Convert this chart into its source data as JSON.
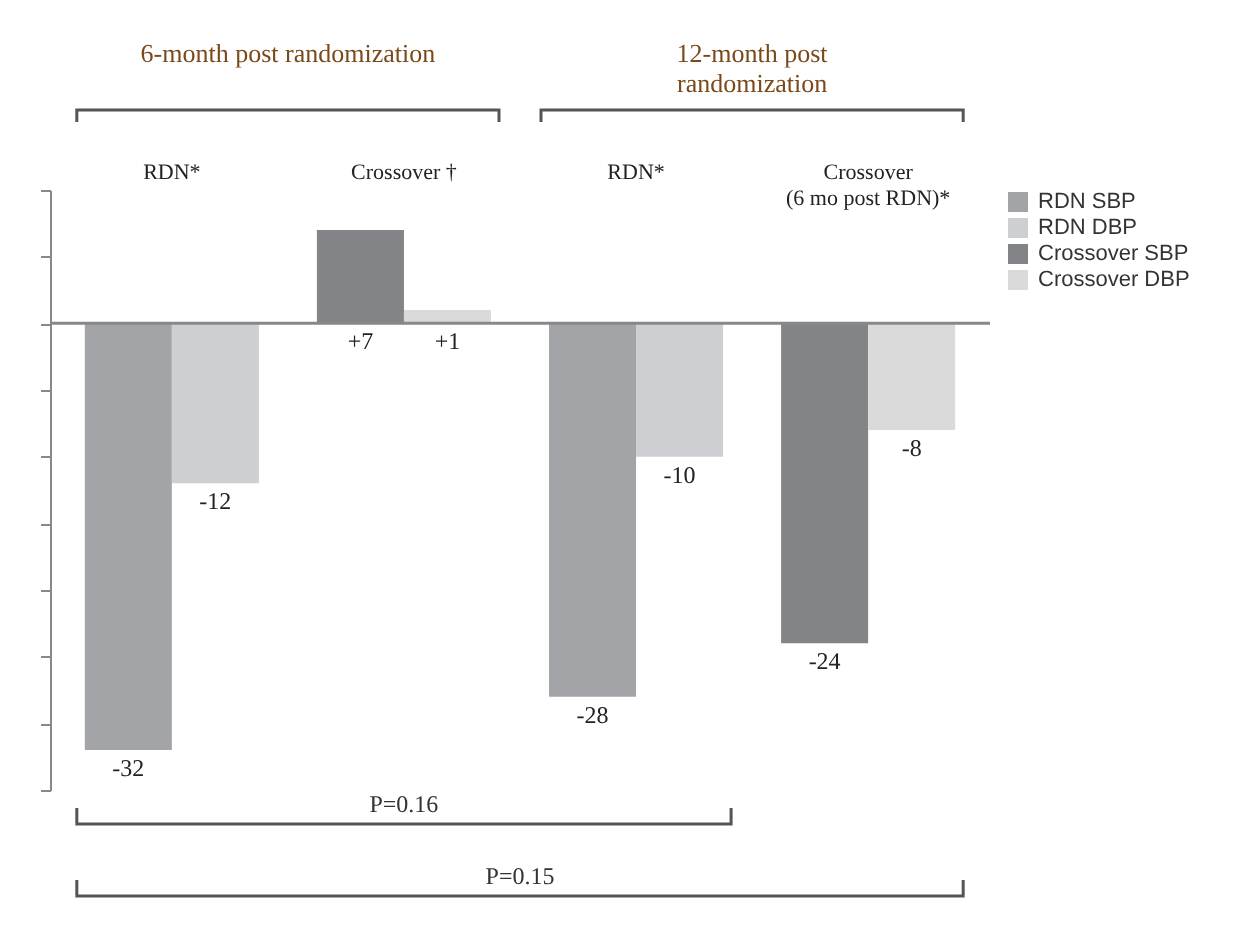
{
  "chart_data": {
    "type": "bar",
    "categories": [
      "RDN*",
      "Crossover †",
      "RDN*",
      "Crossover\n(6 mo post RDN)*"
    ],
    "series": [
      {
        "name": "RDN SBP",
        "color": "#a3a4a8",
        "values": [
          -32,
          null,
          -28,
          null
        ],
        "value_labels": [
          "-32",
          null,
          "-28",
          null
        ]
      },
      {
        "name": "RDN DBP",
        "color": "#cdcfd2",
        "values": [
          -12,
          null,
          -10,
          null
        ],
        "value_labels": [
          "-12",
          null,
          "-10",
          null
        ]
      },
      {
        "name": "Crossover SBP",
        "color": "#838487",
        "values": [
          null,
          7,
          null,
          -24
        ],
        "value_labels": [
          null,
          "+7",
          null,
          "-24"
        ]
      },
      {
        "name": "Crossover DBP",
        "color": "#dadadb",
        "values": [
          null,
          1,
          null,
          -8
        ],
        "value_labels": [
          null,
          "+1",
          null,
          "-8"
        ]
      }
    ],
    "ylim": [
      -35,
      10
    ],
    "yticks": [
      {
        "value": -35,
        "label": null
      },
      {
        "value": -30,
        "label": null
      },
      {
        "value": -25,
        "label": null
      },
      {
        "value": -20,
        "label": null
      },
      {
        "value": -15,
        "label": null
      },
      {
        "value": -10,
        "label": null
      },
      {
        "value": -5,
        "label": null
      },
      {
        "value": 0,
        "label": null
      },
      {
        "value": 5,
        "label": null
      },
      {
        "value": 10,
        "label": null
      }
    ],
    "tick_labels": "x",
    "grid": false,
    "legend": "right",
    "annotations": [
      "6-month post randomization",
      "12-month post randomization",
      "P=0.16",
      "P=0.15"
    ]
  }
}
